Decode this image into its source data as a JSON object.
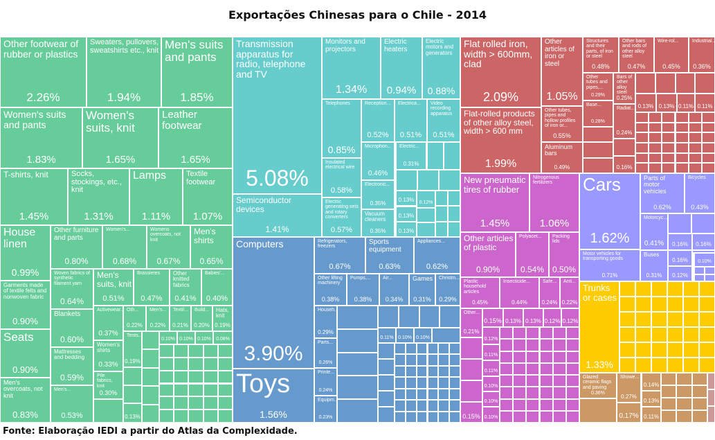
{
  "title": "Exportações Chinesas para o Chile - 2014",
  "source": "Fonte: Elaboração IEDI a partir do Atlas da Complexidade.",
  "colors": {
    "textiles": "#66CC99",
    "electronics": "#66CCCC",
    "machinery": "#6699CC",
    "metals": "#CC6666",
    "chemicals": "#CC66CC",
    "vehicles": "#9999FF",
    "other": "#FFCC00",
    "stone": "#CC9966",
    "misc": "#CC9999"
  },
  "chart_data": {
    "type": "treemap",
    "title": "Exportações Chinesas para o Chile - 2014",
    "items": [
      {
        "name": "Other footwear of rubber or plastics",
        "value": "2.26%",
        "group": "textiles"
      },
      {
        "name": "Sweaters, pullovers, sweatshirts etc., knit",
        "value": "1.94%",
        "group": "textiles"
      },
      {
        "name": "Men's suits and pants",
        "value": "1.85%",
        "group": "textiles"
      },
      {
        "name": "Women's suits and pants",
        "value": "1.83%",
        "group": "textiles"
      },
      {
        "name": "Women's suits, knit",
        "value": "1.65%",
        "group": "textiles"
      },
      {
        "name": "Leather footwear",
        "value": "1.65%",
        "group": "textiles"
      },
      {
        "name": "T-shirts, knit",
        "value": "1.45%",
        "group": "textiles"
      },
      {
        "name": "Socks, stockings, etc., knit",
        "value": "1.31%",
        "group": "textiles"
      },
      {
        "name": "Lamps",
        "value": "1.11%",
        "group": "textiles"
      },
      {
        "name": "Textile footwear",
        "value": "1.07%",
        "group": "textiles"
      },
      {
        "name": "House linen",
        "value": "0.99%",
        "group": "textiles"
      },
      {
        "name": "Garments made of textile felts and nonwoven fabric",
        "value": "0.90%",
        "group": "textiles"
      },
      {
        "name": "Seats",
        "value": "0.90%",
        "group": "textiles"
      },
      {
        "name": "Men's overcoats, not knit",
        "value": "0.83%",
        "group": "textiles"
      },
      {
        "name": "Other furniture and parts",
        "value": "0.80%",
        "group": "textiles"
      },
      {
        "name": "Women's...",
        "value": "0.68%",
        "group": "textiles"
      },
      {
        "name": "Womens overcoats, not knit",
        "value": "0.67%",
        "group": "textiles"
      },
      {
        "name": "Men's shirts",
        "value": "0.65%",
        "group": "textiles"
      },
      {
        "name": "Woven fabrics of synthetic filament yarn",
        "value": "0.64%",
        "group": "textiles"
      },
      {
        "name": "Blankets",
        "value": "0.60%",
        "group": "textiles"
      },
      {
        "name": "Mattresses and bedding",
        "value": "0.59%",
        "group": "textiles"
      },
      {
        "name": "Men's...",
        "value": "0.53%",
        "group": "textiles"
      },
      {
        "name": "Men's suits, knit",
        "value": "0.51%",
        "group": "textiles"
      },
      {
        "name": "Brassieres",
        "value": "0.47%",
        "group": "textiles"
      },
      {
        "name": "Other knitted fabrics",
        "value": "0.41%",
        "group": "textiles"
      },
      {
        "name": "Babies'...",
        "value": "0.40%",
        "group": "textiles"
      },
      {
        "name": "Activewear...",
        "value": "0.37%",
        "group": "textiles"
      },
      {
        "name": "Women's shirts",
        "value": "0.33%",
        "group": "textiles"
      },
      {
        "name": "Pile fabrics, knit",
        "value": "0.30%",
        "group": "textiles"
      },
      {
        "name": "Oth...",
        "value": "0.22%",
        "group": "textiles"
      },
      {
        "name": "Men's...",
        "value": "0.22%",
        "group": "textiles"
      },
      {
        "name": "Textil...",
        "value": "0.21%",
        "group": "textiles"
      },
      {
        "name": "Build...",
        "value": "0.20%",
        "group": "textiles"
      },
      {
        "name": "Hats, knit",
        "value": "0.19%",
        "group": "textiles"
      },
      {
        "name": "Tents...",
        "value": "0.19%",
        "group": "textiles"
      },
      {
        "name": "",
        "value": "0.13%",
        "group": "textiles"
      },
      {
        "name": "",
        "value": "0.10%",
        "group": "textiles"
      },
      {
        "name": "",
        "value": "0.10%",
        "group": "textiles"
      },
      {
        "name": "",
        "value": "0.10%",
        "group": "textiles"
      },
      {
        "name": "",
        "value": "0.08%",
        "group": "textiles"
      },
      {
        "name": "Transmission apparatus for radio, telephone and TV",
        "value": "5.08%",
        "group": "electronics"
      },
      {
        "name": "Semiconductor devices",
        "value": "1.41%",
        "group": "electronics"
      },
      {
        "name": "Monitors and projectors",
        "value": "1.34%",
        "group": "electronics"
      },
      {
        "name": "Electric heaters",
        "value": "0.94%",
        "group": "electronics"
      },
      {
        "name": "Electric motors and generators",
        "value": "0.88%",
        "group": "electronics"
      },
      {
        "name": "Telephones",
        "value": "0.85%",
        "group": "electronics"
      },
      {
        "name": "Insulated electrical wire",
        "value": "0.58%",
        "group": "electronics"
      },
      {
        "name": "Electric generating sets and rotary converters",
        "value": "0.57%",
        "group": "electronics"
      },
      {
        "name": "Reception...",
        "value": "0.52%",
        "group": "electronics"
      },
      {
        "name": "Electrica...",
        "value": "0.51%",
        "group": "electronics"
      },
      {
        "name": "Video recording apparatus",
        "value": "0.51%",
        "group": "electronics"
      },
      {
        "name": "Microphon...",
        "value": "0.46%",
        "group": "electronics"
      },
      {
        "name": "Electronic...",
        "value": "0.35%",
        "group": "electronics"
      },
      {
        "name": "Vacuum cleaners",
        "value": "0.35%",
        "group": "electronics"
      },
      {
        "name": "Electric...",
        "value": "0.31%",
        "group": "electronics"
      },
      {
        "name": "",
        "value": "0.13%",
        "group": "electronics"
      },
      {
        "name": "",
        "value": "0.13%",
        "group": "electronics"
      },
      {
        "name": "",
        "value": "0.13%",
        "group": "electronics"
      },
      {
        "name": "",
        "value": "0.12%",
        "group": "electronics"
      },
      {
        "name": "Computers",
        "value": "3.90%",
        "group": "machinery"
      },
      {
        "name": "Toys",
        "value": "1.56%",
        "group": "machinery"
      },
      {
        "name": "Refrigerators, freezers",
        "value": "0.67%",
        "group": "machinery"
      },
      {
        "name": "Sports equipment",
        "value": "0.63%",
        "group": "machinery"
      },
      {
        "name": "Appliances...",
        "value": "0.62%",
        "group": "machinery"
      },
      {
        "name": "Other lifting machinery",
        "value": "0.38%",
        "group": "machinery"
      },
      {
        "name": "Pumps,...",
        "value": "0.38%",
        "group": "machinery"
      },
      {
        "name": "Air...",
        "value": "0.34%",
        "group": "machinery"
      },
      {
        "name": "Games",
        "value": "0.31%",
        "group": "machinery"
      },
      {
        "name": "Christm...",
        "value": "0.29%",
        "group": "machinery"
      },
      {
        "name": "Househ...",
        "value": "0.29%",
        "group": "machinery"
      },
      {
        "name": "Parts...",
        "value": "0.26%",
        "group": "machinery"
      },
      {
        "name": "Printe...",
        "value": "0.24%",
        "group": "machinery"
      },
      {
        "name": "Equipm...",
        "value": "0.23%",
        "group": "machinery"
      },
      {
        "name": "",
        "value": "0.11%",
        "group": "machinery"
      },
      {
        "name": "",
        "value": "0.10%",
        "group": "machinery"
      },
      {
        "name": "",
        "value": "0.10%",
        "group": "machinery"
      },
      {
        "name": "Flat rolled iron, width > 600mm, clad",
        "value": "2.09%",
        "group": "metals"
      },
      {
        "name": "Flat-rolled products of other alloy steel, width > 600 mm",
        "value": "1.99%",
        "group": "metals"
      },
      {
        "name": "Other articles of iron or steel",
        "value": "1.05%",
        "group": "metals"
      },
      {
        "name": "Other tubes, pipes and hollow profiles of iron or...",
        "value": "0.55%",
        "group": "metals"
      },
      {
        "name": "Aluminum bars",
        "value": "0.49%",
        "group": "metals"
      },
      {
        "name": "Structures and their parts, of iron or steel",
        "value": "0.48%",
        "group": "metals"
      },
      {
        "name": "Other bars and rods of other alloy steel",
        "value": "0.47%",
        "group": "metals"
      },
      {
        "name": "Wire-rol...",
        "value": "0.45%",
        "group": "metals"
      },
      {
        "name": "Industrial...",
        "value": "0.36%",
        "group": "metals"
      },
      {
        "name": "Other tubes and pipes,...",
        "value": "0.29%",
        "group": "metals"
      },
      {
        "name": "Base...",
        "value": "0.28%",
        "group": "metals"
      },
      {
        "name": "Bars of other alloy steel",
        "value": "0.25%",
        "group": "metals"
      },
      {
        "name": "Radiat...",
        "value": "0.24%",
        "group": "metals"
      },
      {
        "name": "",
        "value": "0.16%",
        "group": "metals"
      },
      {
        "name": "",
        "value": "0.13%",
        "group": "metals"
      },
      {
        "name": "",
        "value": "0.13%",
        "group": "metals"
      },
      {
        "name": "",
        "value": "0.11%",
        "group": "metals"
      },
      {
        "name": "",
        "value": "0.11%",
        "group": "metals"
      },
      {
        "name": "New pneumatic tires of rubber",
        "value": "1.45%",
        "group": "chemicals"
      },
      {
        "name": "Nitrogenous fertilizers",
        "value": "1.06%",
        "group": "chemicals"
      },
      {
        "name": "Other articles of plastic",
        "value": "0.90%",
        "group": "chemicals"
      },
      {
        "name": "Polyacet...",
        "value": "0.54%",
        "group": "chemicals"
      },
      {
        "name": "Packing lids",
        "value": "0.50%",
        "group": "chemicals"
      },
      {
        "name": "Plastic household articles",
        "value": "0.45%",
        "group": "chemicals"
      },
      {
        "name": "Insecticide...",
        "value": "0.44%",
        "group": "chemicals"
      },
      {
        "name": "Safe...",
        "value": "0.24%",
        "group": "chemicals"
      },
      {
        "name": "Anti...",
        "value": "0.22%",
        "group": "chemicals"
      },
      {
        "name": "Other...",
        "value": "0.21%",
        "group": "chemicals"
      },
      {
        "name": "",
        "value": "0.15%",
        "group": "chemicals"
      },
      {
        "name": "",
        "value": "0.15%",
        "group": "chemicals"
      },
      {
        "name": "",
        "value": "0.13%",
        "group": "chemicals"
      },
      {
        "name": "",
        "value": "0.13%",
        "group": "chemicals"
      },
      {
        "name": "",
        "value": "0.12%",
        "group": "chemicals"
      },
      {
        "name": "",
        "value": "0.12%",
        "group": "chemicals"
      },
      {
        "name": "",
        "value": "0.12%",
        "group": "chemicals"
      },
      {
        "name": "",
        "value": "0.11%",
        "group": "chemicals"
      },
      {
        "name": "",
        "value": "0.11%",
        "group": "chemicals"
      },
      {
        "name": "",
        "value": "0.10%",
        "group": "chemicals"
      },
      {
        "name": "",
        "value": "0.10%",
        "group": "chemicals"
      },
      {
        "name": "",
        "value": "0.10%",
        "group": "chemicals"
      },
      {
        "name": "Cars",
        "value": "1.62%",
        "group": "vehicles"
      },
      {
        "name": "Motor vehicles for transporting goods",
        "value": "0.71%",
        "group": "vehicles"
      },
      {
        "name": "Parts of motor vehicles",
        "value": "0.62%",
        "group": "vehicles"
      },
      {
        "name": "Bicycles",
        "value": "0.43%",
        "group": "vehicles"
      },
      {
        "name": "Motorcyc...",
        "value": "0.41%",
        "group": "vehicles"
      },
      {
        "name": "Buses",
        "value": "0.31%",
        "group": "vehicles"
      },
      {
        "name": "",
        "value": "0.16%",
        "group": "vehicles"
      },
      {
        "name": "",
        "value": "0.16%",
        "group": "vehicles"
      },
      {
        "name": "",
        "value": "0.16%",
        "group": "vehicles"
      },
      {
        "name": "",
        "value": "0.12%",
        "group": "vehicles"
      },
      {
        "name": "",
        "value": "0.10%",
        "group": "vehicles"
      },
      {
        "name": "Trunks or cases",
        "value": "1.33%",
        "group": "other"
      },
      {
        "name": "Glazed ceramic flags and paving",
        "value": "0.36%",
        "group": "stone"
      },
      {
        "name": "Showe...",
        "value": "0.27%",
        "group": "stone"
      },
      {
        "name": "",
        "value": "0.17%",
        "group": "stone"
      },
      {
        "name": "",
        "value": "0.14%",
        "group": "stone"
      },
      {
        "name": "",
        "value": "0.13%",
        "group": "stone"
      },
      {
        "name": "",
        "value": "0.11%",
        "group": "stone"
      }
    ]
  }
}
